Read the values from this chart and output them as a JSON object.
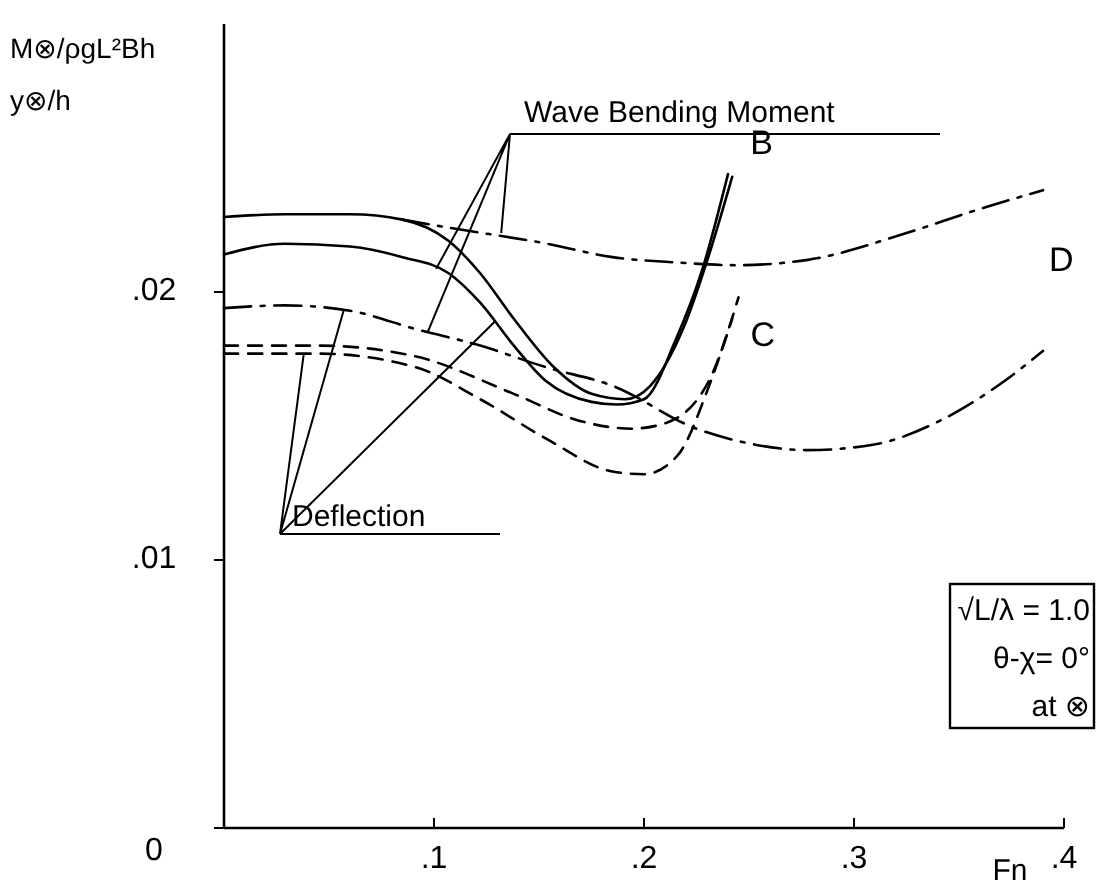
{
  "chart_data": {
    "type": "line",
    "ylabel": "M⊗/ρgL²Bh",
    "y2label": "y⊗/h",
    "xlabel": "Fn",
    "xlim": [
      0,
      0.4
    ],
    "ylim": [
      0,
      0.03
    ],
    "xticks": [
      {
        "value": 0.1,
        "label": ".1"
      },
      {
        "value": 0.2,
        "label": ".2"
      },
      {
        "value": 0.3,
        "label": ".3"
      },
      {
        "value": 0.4,
        "label": ".4"
      }
    ],
    "yticks": [
      {
        "value": 0,
        "label": "0"
      },
      {
        "value": 0.01,
        "label": ".01"
      },
      {
        "value": 0.02,
        "label": ".02"
      }
    ],
    "grid": false,
    "marker": "none",
    "annotations": [
      {
        "text": "Wave Bending Moment",
        "x": 0.132,
        "y": 0.0222
      },
      {
        "text": "Deflection",
        "x": 0.038,
        "y": 0.0177
      },
      "√L/λ = 1.0",
      "θ-χ= 0°",
      "at ⊗"
    ],
    "series": [
      {
        "name": "B",
        "color": "#000000",
        "line_style": "solid",
        "x": [
          0,
          0.029,
          0.06,
          0.085,
          0.107,
          0.122,
          0.138,
          0.157,
          0.175,
          0.191,
          0.203,
          0.219,
          0.231,
          0.242
        ],
        "values": [
          0.0228,
          0.0229,
          0.0229,
          0.0227,
          0.0219,
          0.0207,
          0.019,
          0.0172,
          0.0162,
          0.016,
          0.0165,
          0.0187,
          0.0214,
          0.0243
        ]
      },
      {
        "color": "#000000",
        "line_style": "solid",
        "x": [
          0,
          0.029,
          0.06,
          0.085,
          0.107,
          0.122,
          0.138,
          0.153,
          0.175,
          0.187,
          0.2,
          0.215,
          0.228,
          0.24
        ],
        "values": [
          0.0214,
          0.0218,
          0.0217,
          0.0213,
          0.0207,
          0.0196,
          0.018,
          0.0167,
          0.0159,
          0.0158,
          0.016,
          0.0182,
          0.0209,
          0.0244
        ]
      },
      {
        "name": "D",
        "color": "#000000",
        "line_style": "dashdot",
        "x": [
          0.085,
          0.107,
          0.154,
          0.185,
          0.216,
          0.244,
          0.278,
          0.325,
          0.356,
          0.39
        ],
        "values": [
          0.0227,
          0.0224,
          0.0218,
          0.0213,
          0.0211,
          0.021,
          0.0212,
          0.0222,
          0.023,
          0.0238
        ]
      },
      {
        "color": "#000000",
        "line_style": "dashdot",
        "x": [
          0,
          0.029,
          0.06,
          0.092,
          0.122,
          0.153,
          0.185,
          0.225,
          0.247,
          0.278,
          0.309,
          0.341,
          0.372,
          0.39
        ],
        "values": [
          0.0194,
          0.0195,
          0.0193,
          0.0186,
          0.018,
          0.0172,
          0.0165,
          0.0149,
          0.0144,
          0.0141,
          0.0143,
          0.0152,
          0.0167,
          0.0178
        ]
      },
      {
        "name": "C",
        "color": "#000000",
        "line_style": "dashed",
        "x": [
          0,
          0.045,
          0.091,
          0.138,
          0.169,
          0.194,
          0.21,
          0.231,
          0.245
        ],
        "values": [
          0.018,
          0.018,
          0.0176,
          0.0162,
          0.0152,
          0.0149,
          0.0151,
          0.0167,
          0.0198
        ]
      },
      {
        "color": "#000000",
        "line_style": "dashed",
        "x": [
          0,
          0.045,
          0.091,
          0.122,
          0.154,
          0.185,
          0.2,
          0.216,
          0.231,
          0.242
        ],
        "values": [
          0.0177,
          0.0177,
          0.0172,
          0.016,
          0.0145,
          0.0133,
          0.0132,
          0.0139,
          0.0165,
          0.019
        ]
      }
    ]
  }
}
